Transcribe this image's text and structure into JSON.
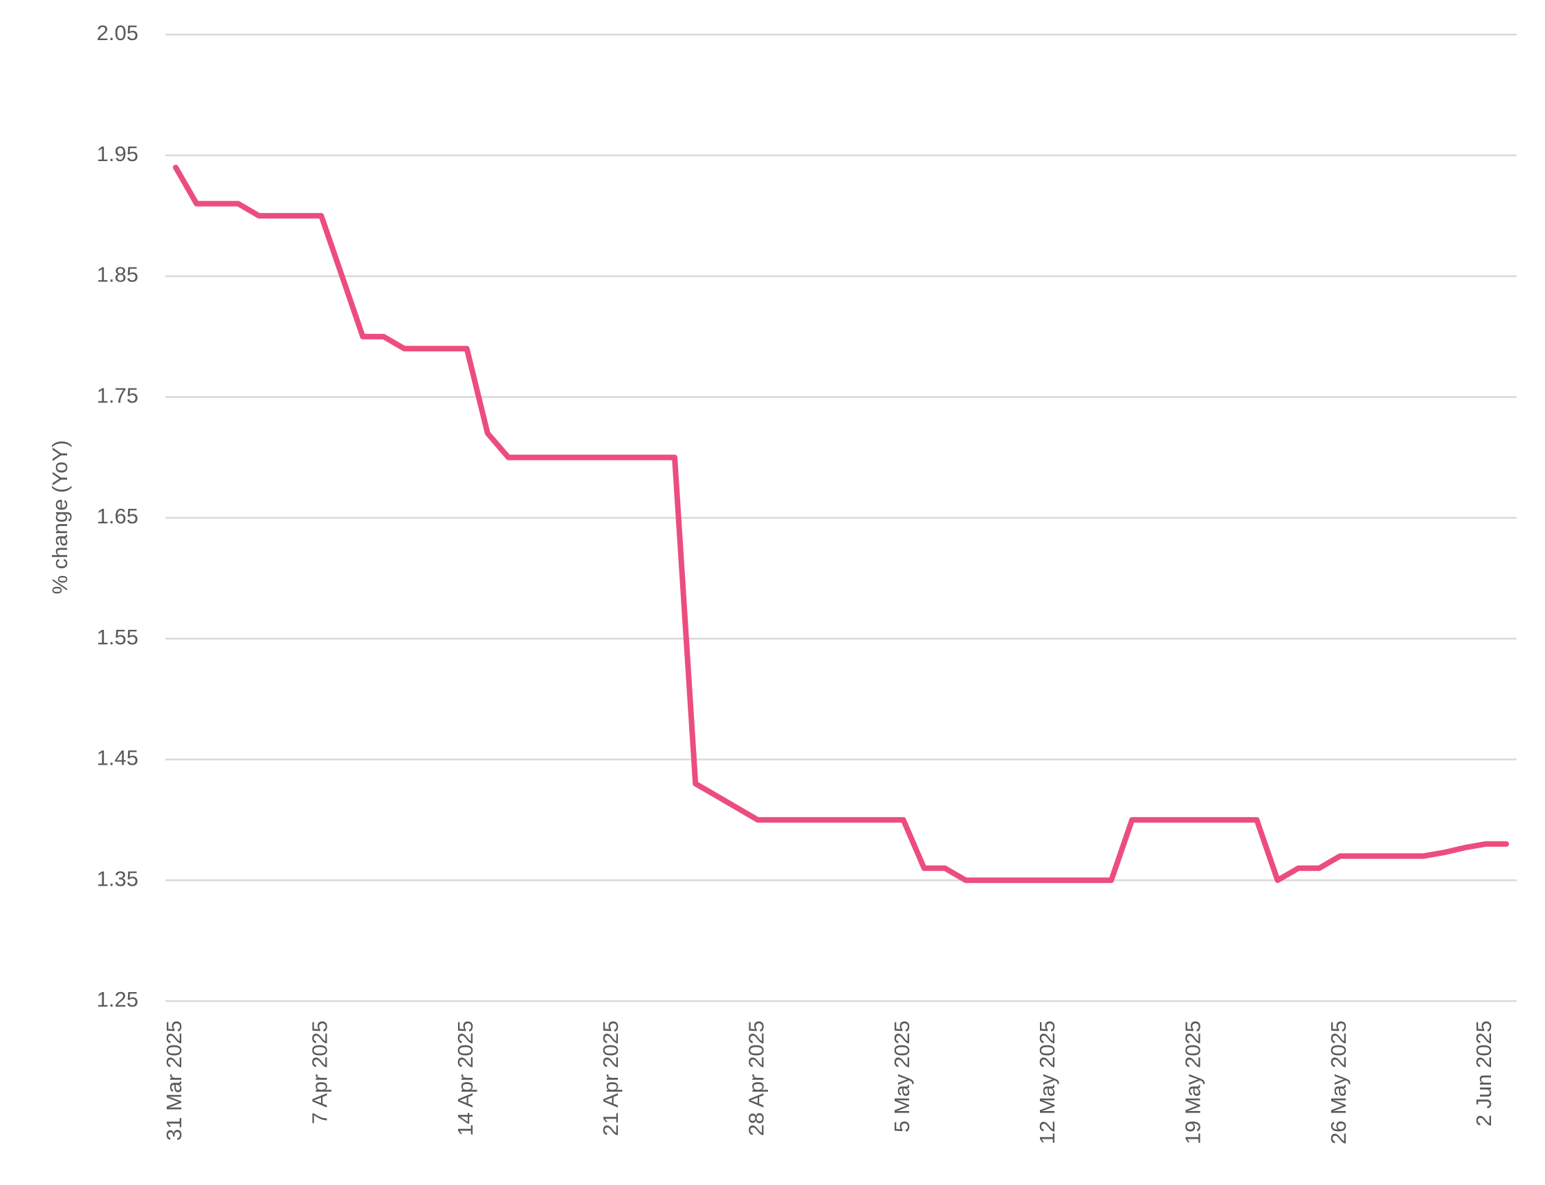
{
  "chart_data": {
    "type": "line",
    "y_label": "% change (YoY)",
    "categories": [
      "31 Mar 2025",
      null,
      null,
      null,
      null,
      null,
      null,
      "7 Apr 2025",
      null,
      null,
      null,
      null,
      null,
      null,
      "14 Apr 2025",
      null,
      null,
      null,
      null,
      null,
      null,
      "21 Apr 2025",
      null,
      null,
      null,
      null,
      null,
      null,
      "28 Apr 2025",
      null,
      null,
      null,
      null,
      null,
      null,
      "5 May 2025",
      null,
      null,
      null,
      null,
      null,
      null,
      "12 May 2025",
      null,
      null,
      null,
      null,
      null,
      null,
      "19 May 2025",
      null,
      null,
      null,
      null,
      null,
      null,
      "26 May 2025",
      null,
      null,
      null,
      null,
      null,
      null,
      "2 Jun 2025",
      null
    ],
    "values": [
      1.94,
      1.91,
      1.91,
      1.91,
      1.9,
      1.9,
      1.9,
      1.9,
      1.85,
      1.8,
      1.8,
      1.79,
      1.79,
      1.79,
      1.79,
      1.72,
      1.7,
      1.7,
      1.7,
      1.7,
      1.7,
      1.7,
      1.7,
      1.7,
      1.7,
      1.43,
      1.42,
      1.41,
      1.4,
      1.4,
      1.4,
      1.4,
      1.4,
      1.4,
      1.4,
      1.4,
      1.36,
      1.36,
      1.35,
      1.35,
      1.35,
      1.35,
      1.35,
      1.35,
      1.35,
      1.35,
      1.4,
      1.4,
      1.4,
      1.4,
      1.4,
      1.4,
      1.4,
      1.35,
      1.36,
      1.36,
      1.37,
      1.37,
      1.37,
      1.37,
      1.37,
      1.373,
      1.377,
      1.38,
      1.38
    ],
    "color": "#ec4d7e",
    "ylim": [
      1.25,
      2.05
    ],
    "yticks": [
      1.25,
      1.35,
      1.45,
      1.55,
      1.65,
      1.75,
      1.85,
      1.95,
      2.05
    ],
    "grid": true
  }
}
